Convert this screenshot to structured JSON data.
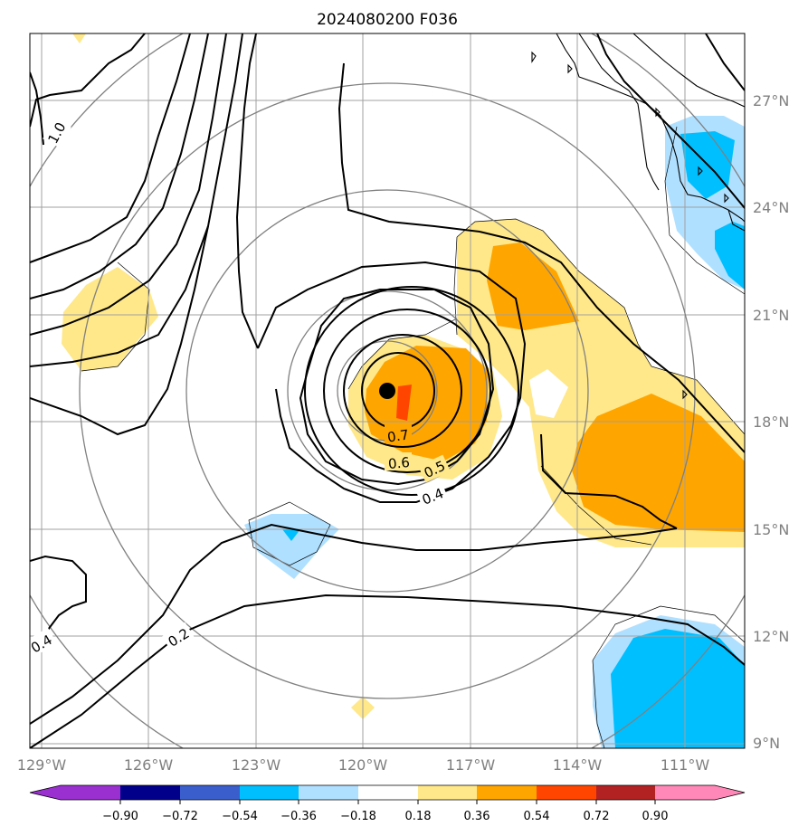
{
  "title": "2024080200 F036",
  "map": {
    "lon_range": [
      -129.5,
      -109.5
    ],
    "lat_range": [
      8.8,
      28.6
    ],
    "lon_ticks": [
      "129°W",
      "126°W",
      "123°W",
      "120°W",
      "117°W",
      "114°W",
      "111°W"
    ],
    "lat_ticks": [
      "27°N",
      "24°N",
      "21°N",
      "18°N",
      "15°N",
      "12°N",
      "9°N"
    ],
    "storm_center": {
      "lon": -119.3,
      "lat": 18.9
    },
    "contour_labels": [
      "1.0",
      "0.7",
      "0.6",
      "0.5",
      "0.4",
      "0.2",
      "0.4"
    ]
  },
  "colorbar": {
    "ticks": [
      "−0.90",
      "−0.72",
      "−0.54",
      "−0.36",
      "−0.18",
      "0.18",
      "0.36",
      "0.54",
      "0.72",
      "0.90"
    ],
    "colors": [
      "#9a30d0",
      "#00008b",
      "#3a5fcd",
      "#00bfff",
      "#b0e0ff",
      "#ffffff",
      "#ffe88a",
      "#ffa500",
      "#ff4500",
      "#b22222",
      "#ff88b8"
    ]
  }
}
